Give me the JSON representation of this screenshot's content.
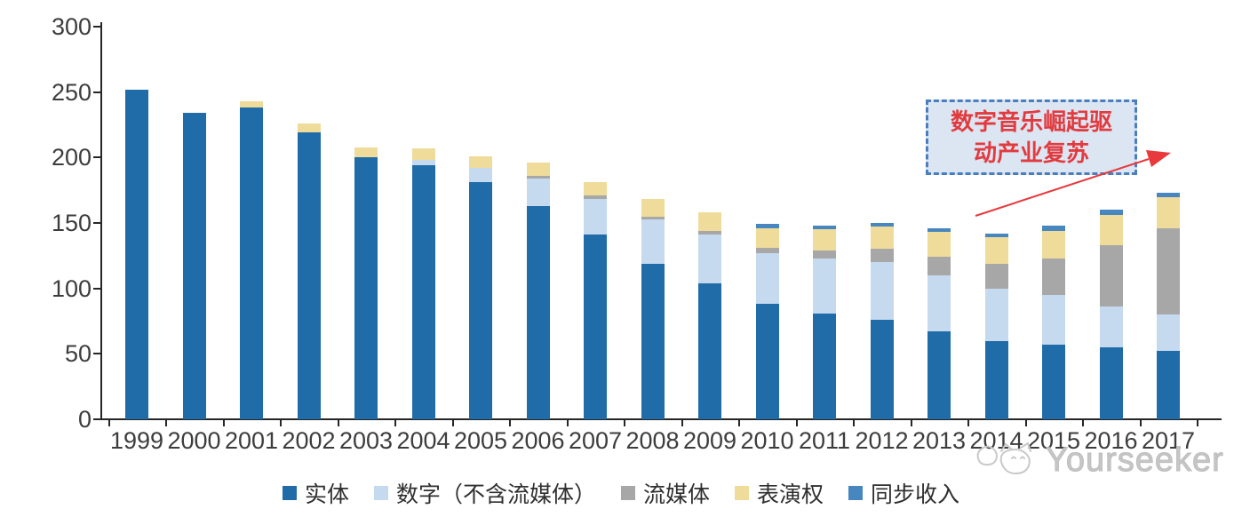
{
  "chart_data": {
    "type": "bar",
    "stacked": true,
    "title": "",
    "xlabel": "",
    "ylabel": "",
    "ylim": [
      0,
      300
    ],
    "yticks": [
      0,
      50,
      100,
      150,
      200,
      250,
      300
    ],
    "grid": false,
    "legend_position": "bottom",
    "categories": [
      "1999",
      "2000",
      "2001",
      "2002",
      "2003",
      "2004",
      "2005",
      "2006",
      "2007",
      "2008",
      "2009",
      "2010",
      "2011",
      "2012",
      "2013",
      "2014",
      "2015",
      "2016",
      "2017"
    ],
    "series": [
      {
        "key": "physical",
        "name": "实体",
        "color": "#1F6CA9",
        "values": [
          252,
          234,
          238,
          219,
          200,
          194,
          181,
          163,
          141,
          119,
          104,
          88,
          81,
          76,
          67,
          60,
          57,
          55,
          52
        ]
      },
      {
        "key": "digital-excl-streaming",
        "name": "数字（不含流媒体）",
        "color": "#C5DAEF",
        "values": [
          0,
          0,
          0,
          0,
          0,
          4,
          11,
          21,
          27,
          34,
          37,
          39,
          42,
          44,
          43,
          40,
          38,
          31,
          28
        ]
      },
      {
        "key": "streaming",
        "name": "流媒体",
        "color": "#A7A7A7",
        "values": [
          0,
          0,
          0,
          0,
          0,
          0,
          0,
          2,
          3,
          2,
          3,
          4,
          6,
          10,
          14,
          19,
          28,
          47,
          66
        ]
      },
      {
        "key": "performance-rights",
        "name": "表演权",
        "color": "#EFDC9B",
        "values": [
          0,
          0,
          5,
          7,
          8,
          9,
          9,
          10,
          10,
          13,
          14,
          15,
          16,
          17,
          19,
          20,
          21,
          23,
          24
        ]
      },
      {
        "key": "sync-revenue",
        "name": "同步收入",
        "color": "#4786BE",
        "values": [
          0,
          0,
          0,
          0,
          0,
          0,
          0,
          0,
          0,
          0,
          0,
          3,
          3,
          3,
          3,
          3,
          4,
          4,
          3
        ]
      }
    ]
  },
  "annotation": {
    "line1": "数字音乐崛起驱",
    "line2": "动产业复苏",
    "text_color": "#E23B3F",
    "box_fill": "#DCE6F3",
    "box_border": "#4A7EBF",
    "arrow_color": "#E8393D"
  },
  "axis": {
    "text_color": "#3d3d3d"
  },
  "watermark": {
    "text": "Yourseeker",
    "icon": "cat-logo",
    "color": "#c6c6c6"
  }
}
